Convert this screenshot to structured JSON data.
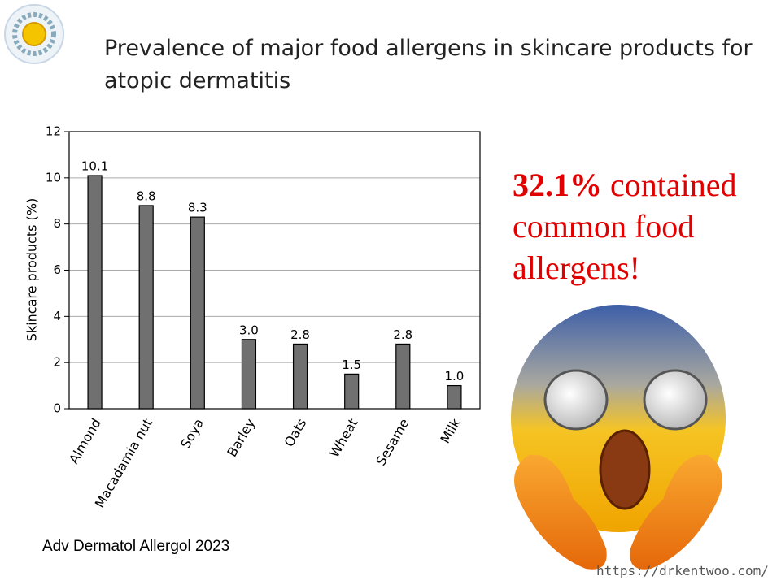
{
  "chart_data": {
    "type": "bar",
    "title": "Prevalence of major food allergens in skincare products for atopic dermatitis",
    "y_label": "Skincare products (%)",
    "categories": [
      "Almond",
      "Macadamia nut",
      "Soya",
      "Barley",
      "Oats",
      "Wheat",
      "Sesame",
      "Milk"
    ],
    "values": [
      10.1,
      8.8,
      8.3,
      3.0,
      2.8,
      1.5,
      2.8,
      1.0
    ],
    "value_labels": [
      "10.1",
      "8.8",
      "8.3",
      "3.0",
      "2.8",
      "1.5",
      "2.8",
      "1.0"
    ],
    "color": "#707070",
    "ylim": [
      0,
      12
    ],
    "yticks": [
      0,
      2,
      4,
      6,
      8,
      10,
      12
    ],
    "grid": true
  },
  "callout": {
    "highlight": "32.1%",
    "text": "contained common food allergens!"
  },
  "source": "Adv Dermatol Allergol 2023",
  "url": "https://drkentwoo.com/"
}
